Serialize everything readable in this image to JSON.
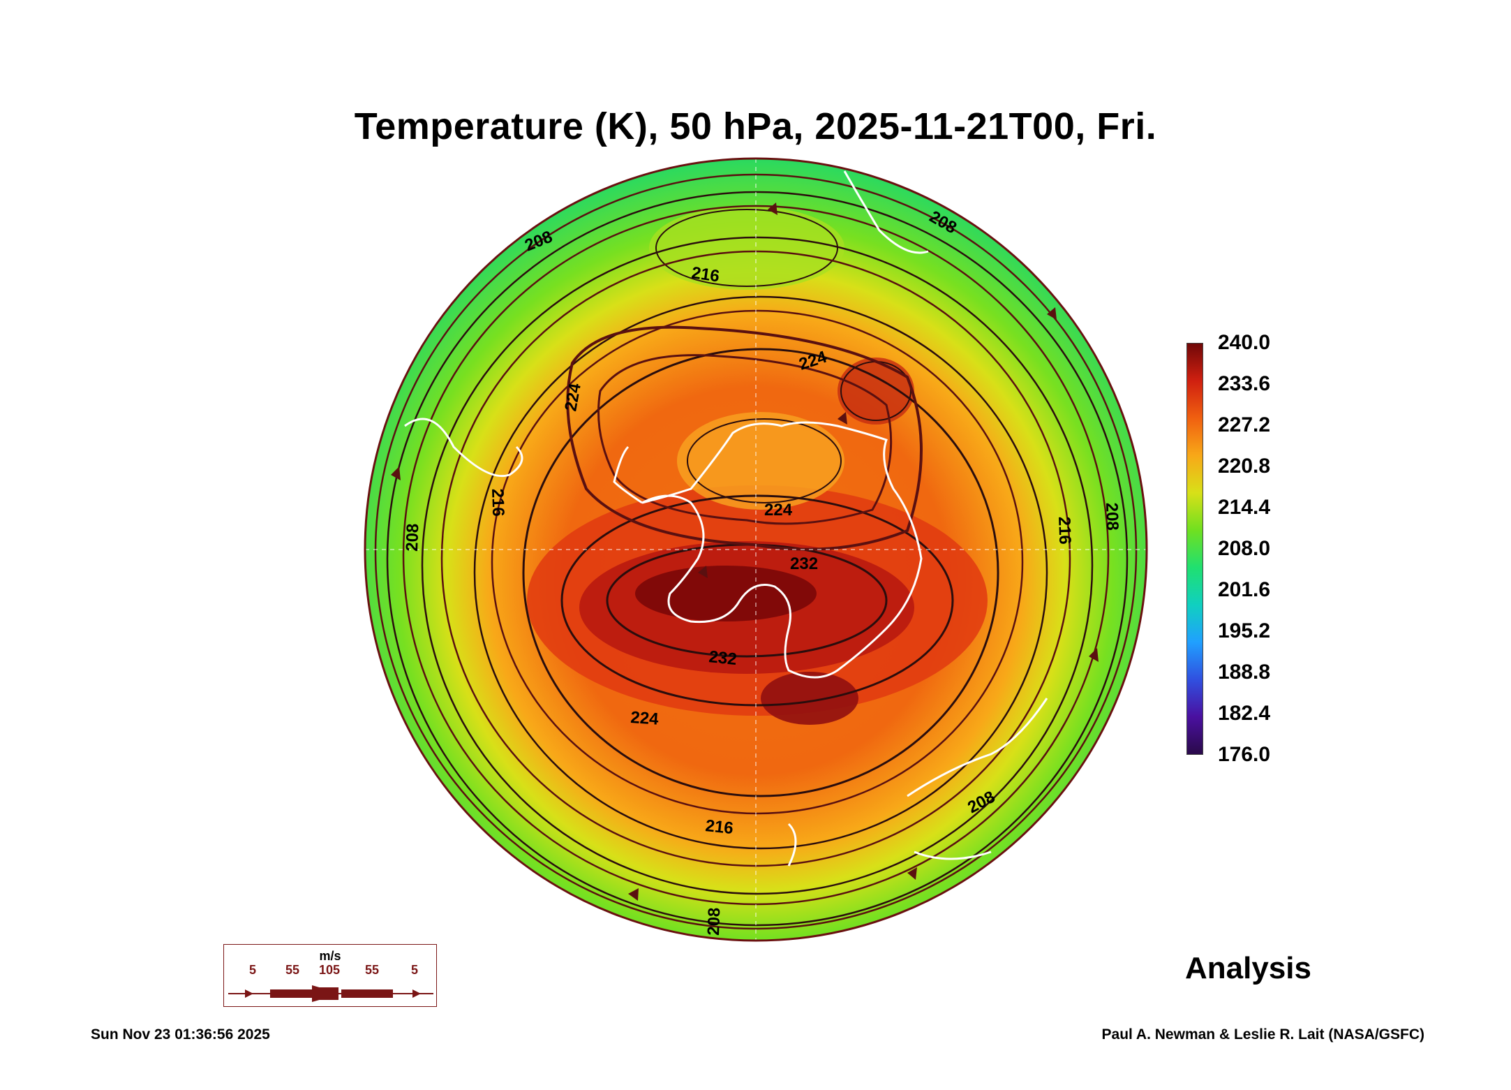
{
  "title": "Temperature (K), 50 hPa, 2025-11-21T00, Fri.",
  "colorbar": {
    "labels": [
      "240.0",
      "233.6",
      "227.2",
      "220.8",
      "214.4",
      "208.0",
      "201.6",
      "195.2",
      "188.8",
      "182.4",
      "176.0"
    ],
    "min": 176.0,
    "max": 240.0,
    "colors": [
      "#2a0a4a",
      "#4a10a0",
      "#3050e0",
      "#20a0ff",
      "#10d0c0",
      "#20e070",
      "#70e020",
      "#d8e018",
      "#f8a818",
      "#f06010",
      "#d02010",
      "#700808"
    ]
  },
  "contour_labels": [
    "208",
    "216",
    "216",
    "208",
    "224",
    "224",
    "232",
    "232",
    "224",
    "216",
    "208",
    "208",
    "216",
    "224",
    "208",
    "208"
  ],
  "wind_legend": {
    "unit": "m/s",
    "values": [
      "5",
      "55",
      "105",
      "55",
      "5"
    ]
  },
  "analysis_label": "Analysis",
  "footer": {
    "timestamp": "Sun Nov 23 01:36:56 2025",
    "credit": "Paul A. Newman & Leslie R. Lait (NASA/GSFC)"
  },
  "colors": {
    "contour": "#2a0d0d",
    "coastline": "#ffffff",
    "streamline": "#5a1010",
    "accent": "#7a1515"
  }
}
